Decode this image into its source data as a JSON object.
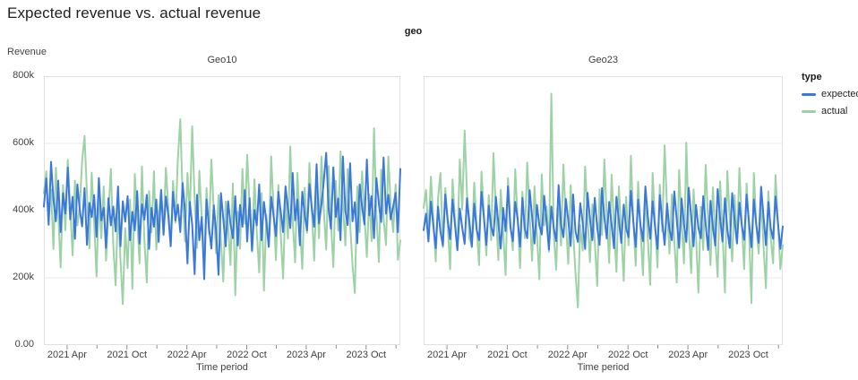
{
  "page": {
    "title": "Expected revenue vs. actual revenue"
  },
  "legend": {
    "title": "type",
    "items": [
      {
        "label": "expected",
        "color": "#3b78dd"
      },
      {
        "label": "actual",
        "color": "#9cd2a5"
      }
    ]
  },
  "colors": {
    "expected": "#3b78dd",
    "actual": "#9cd2a5",
    "gridline": "#e8e8e8",
    "plot_border": "#e0e0e0",
    "tick": "#8f8f8f"
  },
  "chart_data": {
    "type": "line",
    "title": "Expected revenue vs. actual revenue",
    "facet_field": "geo",
    "frequency": "weekly",
    "x_domain": [
      "2021-01",
      "2024-01"
    ],
    "x_axis": {
      "label": "Time period",
      "major_ticks": [
        {
          "f": 0.065,
          "label": "2021 Apr"
        },
        {
          "f": 0.233,
          "label": "2021 Oct"
        },
        {
          "f": 0.401,
          "label": "2022 Apr"
        },
        {
          "f": 0.569,
          "label": "2022 Oct"
        },
        {
          "f": 0.736,
          "label": "2023 Apr"
        },
        {
          "f": 0.904,
          "label": "2023 Oct"
        }
      ],
      "minor_ticks": [
        0.149,
        0.317,
        0.485,
        0.652,
        0.82,
        0.988
      ]
    },
    "y_axis": {
      "label": "Revenue",
      "units": "thousands",
      "max": 800,
      "ticks": [
        {
          "v": 800,
          "label": "800k"
        },
        {
          "v": 600,
          "label": "600k"
        },
        {
          "v": 400,
          "label": "400k"
        },
        {
          "v": 200,
          "label": "200k"
        },
        {
          "v": 0,
          "label": "0.00"
        }
      ],
      "gridlines": [
        600,
        400,
        200
      ]
    },
    "series": [
      {
        "name": "expected",
        "color": "#3b78dd"
      },
      {
        "name": "actual",
        "color": "#9cd2a5"
      }
    ],
    "z_order": [
      "actual",
      "expected"
    ],
    "facets": [
      {
        "title": "Geo10",
        "series": {
          "expected": [
            412,
            496,
            358,
            545,
            431,
            368,
            489,
            336,
            452,
            391,
            528,
            374,
            441,
            316,
            478,
            402,
            353,
            467,
            298,
            423,
            381,
            446,
            322,
            497,
            371,
            408,
            289,
            437,
            356,
            412,
            338,
            472,
            294,
            428,
            367,
            443,
            312,
            396,
            341,
            458,
            302,
            419,
            373,
            447,
            286,
            408,
            352,
            433,
            307,
            461,
            328,
            442,
            386,
            294,
            456,
            371,
            418,
            336,
            482,
            397,
            243,
            426,
            358,
            211,
            447,
            312,
            381,
            196,
            433,
            352,
            287,
            416,
            338,
            209,
            452,
            376,
            294,
            428,
            361,
            318,
            443,
            296,
            417,
            352,
            461,
            308,
            437,
            281,
            402,
            356,
            478,
            312,
            426,
            367,
            292,
            441,
            386,
            324,
            456,
            398,
            336,
            472,
            407,
            348,
            512,
            371,
            433,
            297,
            456,
            388,
            341,
            479,
            406,
            352,
            538,
            362,
            418,
            487,
            572,
            407,
            346,
            529,
            381,
            436,
            312,
            561,
            399,
            357,
            541,
            368,
            425,
            303,
            478,
            412,
            359,
            552,
            386,
            443,
            318,
            497,
            421,
            366,
            558,
            391,
            447,
            374,
            412,
            453,
            336,
            524
          ],
          "actual": [
            452,
            517,
            371,
            463,
            286,
            528,
            394,
            231,
            476,
            342,
            551,
            408,
            267,
            489,
            356,
            412,
            548,
            622,
            451,
            287,
            513,
            368,
            204,
            446,
            318,
            472,
            251,
            397,
            524,
            296,
            178,
            412,
            253,
            122,
            348,
            229,
            433,
            167,
            509,
            377,
            243,
            531,
            312,
            186,
            458,
            336,
            517,
            284,
            391,
            462,
            338,
            527,
            412,
            296,
            488,
            364,
            553,
            672,
            441,
            308,
            512,
            386,
            651,
            437,
            289,
            518,
            376,
            242,
            467,
            331,
            552,
            398,
            273,
            446,
            312,
            189,
            427,
            356,
            238,
            481,
            148,
            396,
            287,
            524,
            361,
            566,
            412,
            278,
            493,
            337,
            216,
            452,
            162,
            388,
            294,
            561,
            407,
            253,
            476,
            329,
            198,
            443,
            317,
            591,
            372,
            246,
            512,
            358,
            227,
            468,
            334,
            542,
            396,
            251,
            477,
            318,
            561,
            402,
            284,
            533,
            367,
            232,
            489,
            341,
            576,
            418,
            296,
            524,
            363,
            238,
            155,
            472,
            336,
            517,
            384,
            262,
            448,
            309,
            645,
            391,
            247,
            522,
            376,
            298,
            561,
            413,
            336,
            478,
            254,
            311
          ]
        }
      },
      {
        "title": "Geo23",
        "series": {
          "expected": [
            342,
            391,
            308,
            427,
            356,
            288,
            412,
            337,
            296,
            448,
            372,
            315,
            433,
            358,
            282,
            406,
            349,
            301,
            437,
            368,
            292,
            421,
            344,
            312,
            456,
            379,
            298,
            415,
            352,
            326,
            441,
            363,
            287,
            408,
            339,
            472,
            351,
            309,
            426,
            374,
            293,
            438,
            347,
            318,
            461,
            382,
            302,
            417,
            356,
            329,
            444,
            367,
            284,
            412,
            348,
            309,
            476,
            358,
            321,
            435,
            371,
            295,
            448,
            338,
            307,
            422,
            364,
            286,
            453,
            376,
            312,
            438,
            349,
            298,
            467,
            381,
            317,
            426,
            359,
            288,
            441,
            372,
            304,
            418,
            347,
            321,
            459,
            368,
            292,
            433,
            356,
            309,
            472,
            384,
            316,
            428,
            351,
            286,
            446,
            369,
            298,
            421,
            343,
            312,
            457,
            374,
            289,
            436,
            358,
            307,
            468,
            382,
            294,
            417,
            349,
            318,
            443,
            361,
            283,
            429,
            352,
            296,
            464,
            378,
            308,
            437,
            346,
            289,
            452,
            371,
            302,
            424,
            357,
            313,
            448,
            366,
            291,
            433,
            359,
            304,
            471,
            383,
            297,
            426,
            348,
            316,
            442,
            364,
            286,
            353
          ],
          "actual": [
            408,
            462,
            327,
            501,
            376,
            249,
            438,
            512,
            291,
            467,
            358,
            226,
            493,
            371,
            286,
            552,
            404,
            638,
            452,
            317,
            296,
            483,
            352,
            238,
            516,
            389,
            267,
            446,
            312,
            571,
            398,
            253,
            462,
            336,
            208,
            497,
            361,
            282,
            523,
            374,
            229,
            456,
            318,
            543,
            387,
            251,
            472,
            329,
            196,
            508,
            356,
            412,
            278,
            748,
            331,
            224,
            452,
            296,
            537,
            368,
            242,
            476,
            339,
            213,
            112,
            357,
            281,
            531,
            386,
            247,
            419,
            308,
            176,
            463,
            327,
            552,
            381,
            244,
            507,
            349,
            218,
            472,
            336,
            191,
            441,
            297,
            563,
            372,
            236,
            486,
            341,
            208,
            453,
            317,
            179,
            512,
            364,
            231,
            477,
            338,
            594,
            406,
            272,
            448,
            309,
            186,
            521,
            367,
            243,
            602,
            351,
            214,
            463,
            328,
            156,
            411,
            283,
            536,
            374,
            238,
            469,
            317,
            203,
            487,
            342,
            156,
            518,
            376,
            249,
            446,
            308,
            527,
            363,
            226,
            481,
            339,
            125,
            512,
            357,
            272,
            436,
            294,
            169,
            458,
            321,
            243,
            506,
            368,
            226,
            297
          ]
        }
      }
    ]
  }
}
